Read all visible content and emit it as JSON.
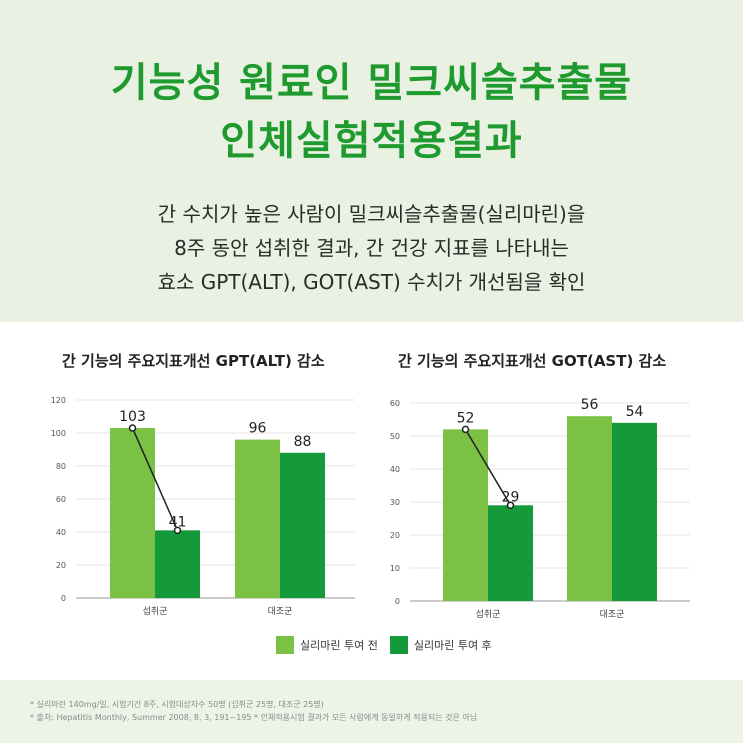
{
  "header": {
    "title_line1": "기능성 원료인 밀크씨슬추출물",
    "title_line2": "인체실험적용결과",
    "desc_line1": "간 수치가 높은 사람이 밀크씨슬추출물(실리마린)을",
    "desc_line2": "8주 동안 섭취한 결과, 간 건강 지표를 나타내는",
    "desc_line3": "효소  GPT(ALT), GOT(AST) 수치가 개선됨을 확인"
  },
  "colors": {
    "before": "#7bc143",
    "after": "#149a3a",
    "title": "#1f9a2f"
  },
  "chart_data": [
    {
      "type": "bar",
      "title": "간 기능의 주요지표개선 GPT(ALT)  감소",
      "categories": [
        "섭취군",
        "대조군"
      ],
      "series": [
        {
          "name": "실리마린 투여 전",
          "values": [
            103,
            96
          ]
        },
        {
          "name": "실리마린 투여 후",
          "values": [
            41,
            88
          ]
        }
      ],
      "ylim": [
        0,
        120
      ],
      "yticks": [
        0,
        20,
        40,
        60,
        80,
        100,
        120
      ],
      "grid": true,
      "legend": "bottom-center"
    },
    {
      "type": "bar",
      "title": "간 기능의 주요지표개선 GOT(AST) 감소",
      "categories": [
        "섭취군",
        "대조군"
      ],
      "series": [
        {
          "name": "실리마린 투여 전",
          "values": [
            52,
            56
          ]
        },
        {
          "name": "실리마린 투여 후",
          "values": [
            29,
            54
          ]
        }
      ],
      "ylim": [
        0,
        60
      ],
      "yticks": [
        0,
        10,
        20,
        30,
        40,
        50,
        60
      ],
      "grid": true,
      "legend": "bottom-center"
    }
  ],
  "legend": {
    "before_label": "실리마린 투여 전",
    "after_label": "실리마린 투여 후"
  },
  "footnotes": {
    "line1": "* 실리마린 140mg/일, 시험기간 8주, 시험대상자수 50명 (섭취군 25명, 대조군 25명)",
    "line2": "* 출처: Hepatitis Monthly, Summer 2008, 8, 3, 191~195   * 인체적용시험 결과가 모든 사람에게 동일하게 적용되는 것은 아님"
  }
}
